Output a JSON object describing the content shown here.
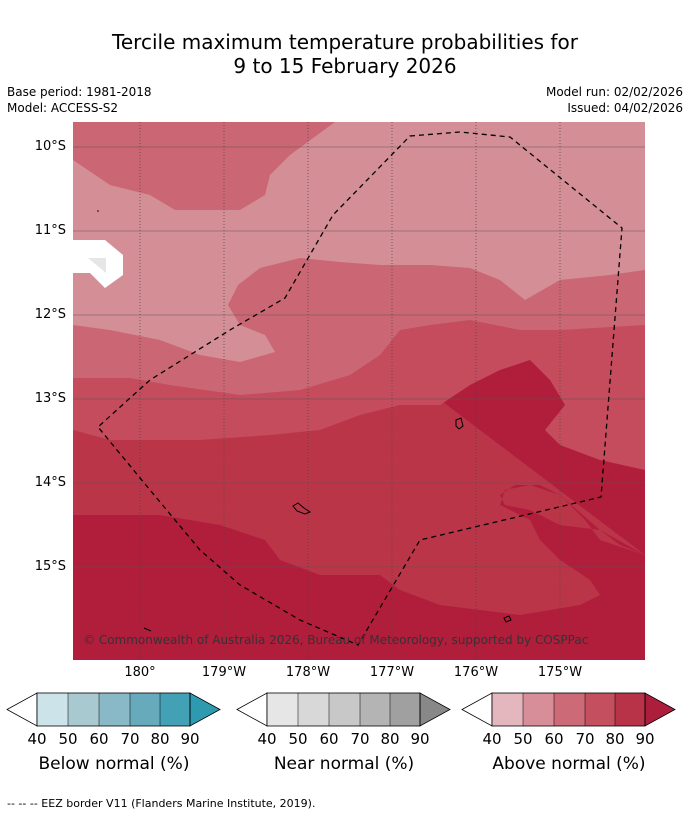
{
  "header": {
    "title_line1": "Tercile maximum temperature probabilities for",
    "title_line2": "9 to 15 February 2026",
    "base_period": "Base period: 1981-2018",
    "model": "Model: ACCESS-S2",
    "model_run": "Model run: 02/02/2026",
    "issued": "Issued: 04/02/2026"
  },
  "map": {
    "lat_labels": [
      "10°S",
      "11°S",
      "12°S",
      "13°S",
      "14°S",
      "15°S"
    ],
    "lon_labels": [
      "180°",
      "179°W",
      "178°W",
      "177°W",
      "176°W",
      "175°W"
    ],
    "copyright": "© Commonwealth of Australia 2026, Bureau of Meteorology, supported by COSPPac"
  },
  "legends": [
    {
      "title": "Below normal (%)",
      "ticks": [
        "40",
        "50",
        "60",
        "70",
        "80",
        "90"
      ],
      "colors": [
        "#ffffff",
        "#cce3ea",
        "#a9c9d1",
        "#89b9c6",
        "#67aabb",
        "#43a1b5",
        "#2d9ab0"
      ]
    },
    {
      "title": "Near normal (%)",
      "ticks": [
        "40",
        "50",
        "60",
        "70",
        "80",
        "90"
      ],
      "colors": [
        "#ffffff",
        "#e6e6e6",
        "#d8d8d8",
        "#c8c8c8",
        "#b4b4b4",
        "#a0a0a0",
        "#888888"
      ]
    },
    {
      "title": "Above normal (%)",
      "ticks": [
        "40",
        "50",
        "60",
        "70",
        "80",
        "90"
      ],
      "colors": [
        "#ffffff",
        "#e3b7bd",
        "#d78e98",
        "#cc6b77",
        "#c4505f",
        "#b93348",
        "#ad1d3c"
      ]
    }
  ],
  "footer": {
    "eez_note": "--  --  -- EEZ border V11 (Flanders Marine Institute, 2019)."
  }
}
